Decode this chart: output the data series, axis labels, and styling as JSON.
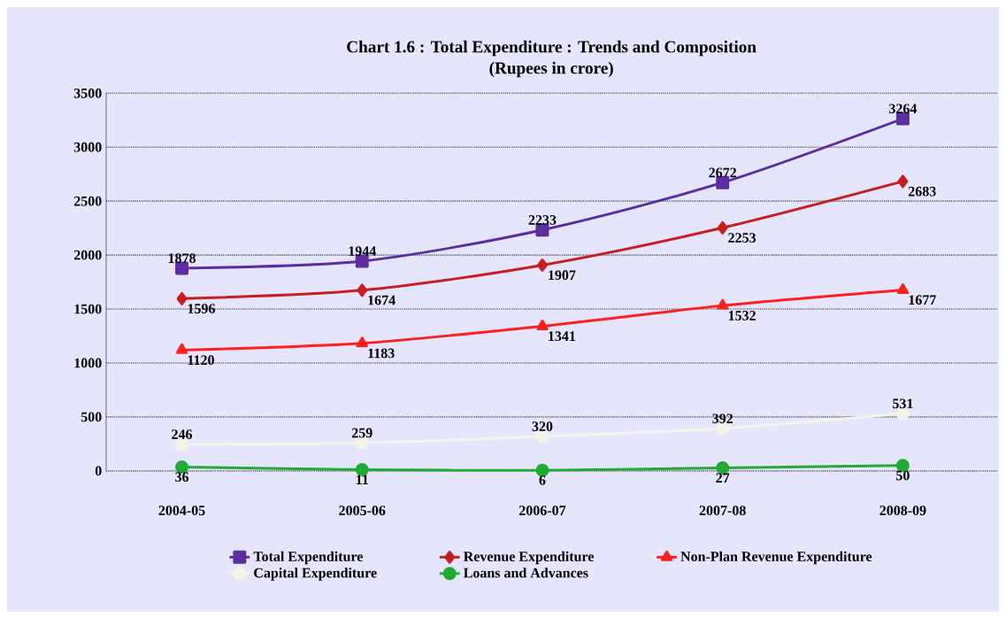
{
  "chart_data": {
    "type": "line",
    "title": "Chart 1.6 : Total Expenditure : Trends and Composition",
    "subtitle": "(Rupees in crore)",
    "categories": [
      "2004-05",
      "2005-06",
      "2006-07",
      "2007-08",
      "2008-09"
    ],
    "series": [
      {
        "name": "Total Expenditure",
        "color": "#5b2d9e",
        "marker": "square",
        "values": [
          1878,
          1944,
          2233,
          2672,
          3264
        ]
      },
      {
        "name": "Revenue Expenditure",
        "color": "#c81e1e",
        "marker": "diamond",
        "values": [
          1596,
          1674,
          1907,
          2253,
          2683
        ]
      },
      {
        "name": "Non-Plan Revenue Expenditure",
        "color": "#ff1f1f",
        "marker": "triangle",
        "values": [
          1120,
          1183,
          1341,
          1532,
          1677
        ]
      },
      {
        "name": "Capital Expenditure",
        "color": "#f4f4e8",
        "marker": "circle",
        "values": [
          246,
          259,
          320,
          392,
          531
        ]
      },
      {
        "name": "Loans and Advances",
        "color": "#22aa33",
        "marker": "circle",
        "values": [
          36,
          11,
          6,
          27,
          50
        ]
      }
    ],
    "ylim": [
      0,
      3500
    ],
    "yticks": [
      0,
      500,
      1000,
      1500,
      2000,
      2500,
      3000,
      3500
    ],
    "grid": "y",
    "legend": "bottom",
    "data_labels": true,
    "line_style": "solid"
  }
}
